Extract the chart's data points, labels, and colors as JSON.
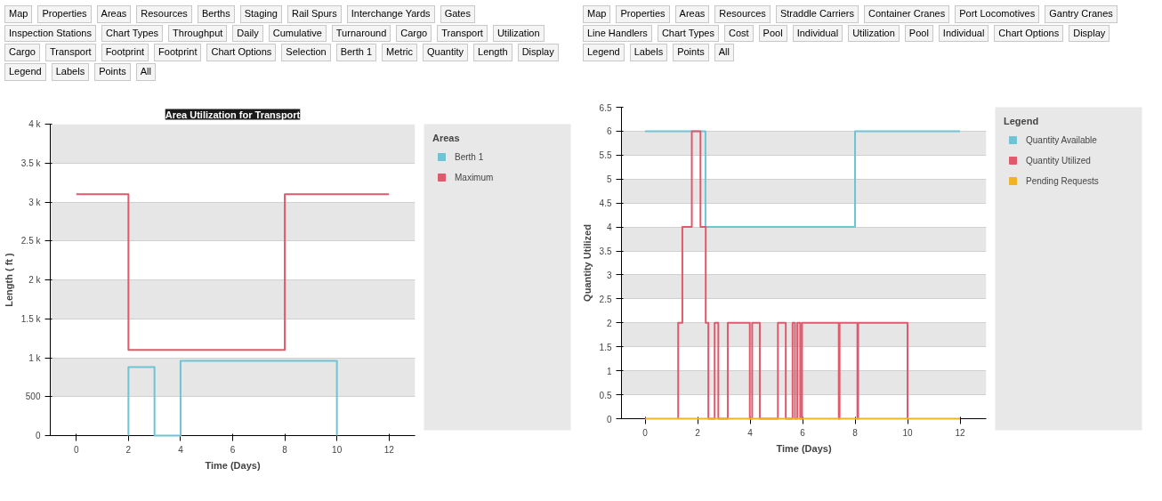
{
  "chart_data": [
    {
      "type": "step",
      "title": "Area Utilization for Transport",
      "xlabel": "Time (Days)",
      "ylabel": "Length ( ft )",
      "legend_title": "Areas",
      "legend": "right",
      "grid": "y",
      "xlim": [
        -1,
        13
      ],
      "xticks": [
        0,
        2,
        4,
        6,
        8,
        10,
        12
      ],
      "ylim": [
        0,
        4000
      ],
      "yticks": [
        0,
        500,
        {
          "value": 1000,
          "label": "1 k"
        },
        {
          "value": 1500,
          "label": "1.5 k"
        },
        {
          "value": 2000,
          "label": "2 k"
        },
        {
          "value": 2500,
          "label": "2.5 k"
        },
        {
          "value": 3000,
          "label": "3 k"
        },
        {
          "value": 3500,
          "label": "3.5 k"
        },
        {
          "value": 4000,
          "label": "4 k"
        }
      ],
      "series": [
        {
          "name": "Berth 1",
          "color": "#6fc3d4",
          "x": [
            2,
            2,
            3,
            4,
            10
          ],
          "values": [
            0,
            880,
            0,
            960,
            0
          ]
        },
        {
          "name": "Maximum",
          "color": "#e05a6e",
          "x": [
            0,
            2,
            8,
            12
          ],
          "values": [
            3100,
            1100,
            3100,
            3100
          ]
        }
      ],
      "annotations": [
        "Map",
        "Properties",
        "Areas",
        "Resources",
        "Berths",
        "Staging",
        "Rail Spurs",
        "Interchange Yards",
        "Gates",
        "Inspection Stations",
        "Chart Types",
        "Throughput",
        "Daily",
        "Cumulative",
        "Turnaround",
        "Cargo",
        "Transport",
        "Utilization",
        "Cargo",
        "Transport",
        "Footprint",
        "Footprint",
        "Chart Options",
        "Selection",
        "Berth 1",
        "Metric",
        "Quantity",
        "Length",
        "Display",
        "Legend",
        "Labels",
        "Points",
        "All"
      ]
    },
    {
      "type": "step",
      "xlabel": "Time (Days)",
      "ylabel": "Quantity Utilized",
      "legend_title": "Legend",
      "legend": "right",
      "grid": "y",
      "xlim": [
        -0.9,
        13
      ],
      "xticks": [
        0,
        2,
        4,
        6,
        8,
        10,
        12
      ],
      "ylim": [
        0,
        6.5
      ],
      "yticks": [
        0,
        0.5,
        1,
        1.5,
        2,
        2.5,
        3,
        3.5,
        4,
        4.5,
        5,
        5.5,
        6,
        6.5
      ],
      "series": [
        {
          "name": "Quantity Available",
          "color": "#6fc3d4",
          "x": [
            0,
            2.3,
            8,
            12
          ],
          "values": [
            6,
            4,
            6,
            6
          ]
        },
        {
          "name": "Quantity Utilized",
          "color": "#e05a6e",
          "x": [
            1.26,
            1.26,
            1.42,
            1.78,
            2.11,
            2.31,
            2.41,
            2.65,
            2.79,
            3.15,
            3.99,
            4.08,
            4.37,
            5.06,
            5.36,
            5.62,
            5.71,
            5.8,
            5.91,
            5.98,
            7.38,
            7.41,
            8.09,
            8.12,
            10.0
          ],
          "values": [
            0,
            2,
            4,
            6,
            4,
            2,
            0,
            2,
            0,
            2,
            0,
            2,
            0,
            2,
            0,
            2,
            0,
            2,
            0,
            2,
            0,
            2,
            0,
            2,
            0
          ]
        },
        {
          "name": "Pending Requests",
          "color": "#f0b323",
          "x": [
            0,
            12
          ],
          "values": [
            0,
            0
          ]
        }
      ],
      "annotations": [
        "Map",
        "Properties",
        "Areas",
        "Resources",
        "Straddle Carriers",
        "Container Cranes",
        "Port Locomotives",
        "Gantry Cranes",
        "Line Handlers",
        "Chart Types",
        "Cost",
        "Pool",
        "Individual",
        "Utilization",
        "Pool",
        "Individual",
        "Chart Options",
        "Display",
        "Legend",
        "Labels",
        "Points",
        "All"
      ]
    }
  ]
}
